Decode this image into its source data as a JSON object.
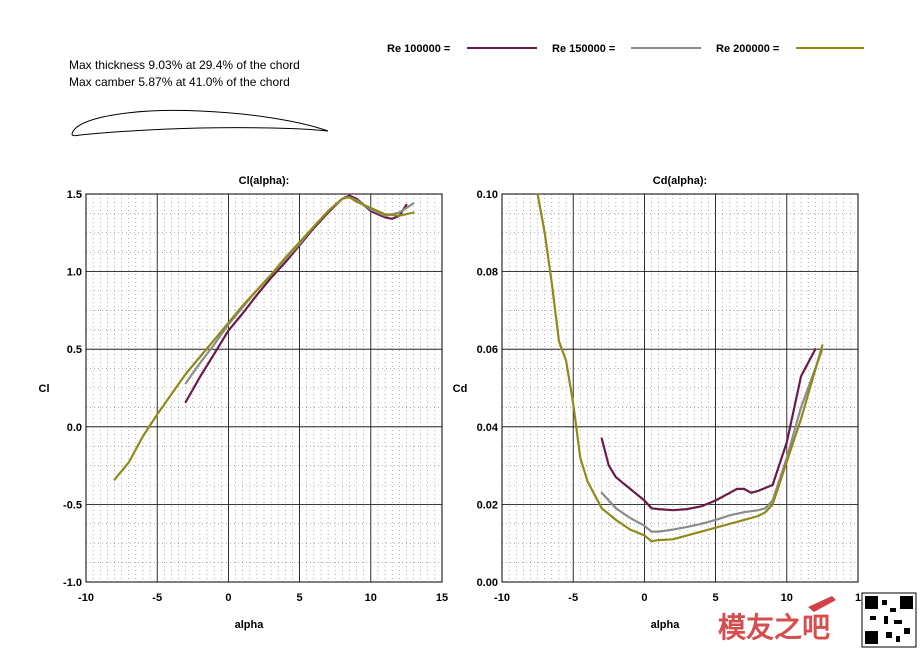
{
  "info": {
    "thickness": "Max thickness 9.03% at 29.4% of the chord",
    "camber": "Max camber 5.87% at 41.0% of the chord"
  },
  "legend": [
    {
      "label": "Re 100000 =",
      "color": "#6b1a4a"
    },
    {
      "label": "Re 150000 =",
      "color": "#8c8c8c"
    },
    {
      "label": "Re 200000 =",
      "color": "#8f8a1a"
    }
  ],
  "chart_data": [
    {
      "type": "line",
      "title": "Cl(alpha):",
      "xlabel": "alpha",
      "ylabel": "Cl",
      "xlim": [
        -10,
        15
      ],
      "ylim": [
        -1.0,
        1.5
      ],
      "xticks": [
        "-10",
        "-5",
        "0",
        "5",
        "10",
        "15"
      ],
      "yticks": [
        "-1.0",
        "-0.5",
        "0.0",
        "0.5",
        "1.0",
        "1.5"
      ],
      "grid": true,
      "series": [
        {
          "name": "Re 100000",
          "color": "#6b1a4a",
          "x": [
            -3,
            -2,
            -1,
            0,
            1,
            2,
            3,
            4,
            5,
            6,
            7,
            8,
            8.5,
            9,
            10,
            11,
            11.5,
            12,
            12.5
          ],
          "y": [
            0.16,
            0.32,
            0.47,
            0.62,
            0.73,
            0.85,
            0.96,
            1.06,
            1.17,
            1.28,
            1.38,
            1.47,
            1.49,
            1.47,
            1.39,
            1.35,
            1.34,
            1.36,
            1.43
          ]
        },
        {
          "name": "Re 150000",
          "color": "#8c8c8c",
          "x": [
            -3,
            -2,
            -1,
            0,
            1,
            2,
            3,
            4,
            5,
            6,
            7,
            8,
            8.5,
            9,
            10,
            11,
            12,
            13
          ],
          "y": [
            0.28,
            0.41,
            0.53,
            0.66,
            0.77,
            0.88,
            0.98,
            1.08,
            1.18,
            1.29,
            1.39,
            1.47,
            1.48,
            1.46,
            1.4,
            1.36,
            1.38,
            1.44
          ]
        },
        {
          "name": "Re 200000",
          "color": "#8f8a1a",
          "x": [
            -8,
            -7,
            -6,
            -5,
            -4,
            -3,
            -2,
            -1,
            0,
            1,
            2,
            3,
            4,
            5,
            6,
            7,
            8,
            8.5,
            9,
            10,
            11,
            12,
            13
          ],
          "y": [
            -0.34,
            -0.23,
            -0.06,
            0.08,
            0.21,
            0.34,
            0.45,
            0.56,
            0.67,
            0.78,
            0.88,
            0.98,
            1.09,
            1.19,
            1.29,
            1.39,
            1.47,
            1.48,
            1.45,
            1.41,
            1.37,
            1.36,
            1.38
          ]
        }
      ]
    },
    {
      "type": "line",
      "title": "Cd(alpha):",
      "xlabel": "alpha",
      "ylabel": "Cd",
      "xlim": [
        -10,
        15
      ],
      "ylim": [
        0.0,
        0.1
      ],
      "xticks": [
        "-10",
        "-5",
        "0",
        "5",
        "10",
        "1"
      ],
      "yticks": [
        "0.00",
        "0.02",
        "0.04",
        "0.06",
        "0.08",
        "0.10"
      ],
      "grid": true,
      "series": [
        {
          "name": "Re 100000",
          "color": "#6b1a4a",
          "x": [
            -3,
            -2.5,
            -2,
            -1,
            0,
            0.5,
            1,
            2,
            3,
            4,
            5,
            6,
            6.5,
            7,
            7.5,
            8,
            9,
            10,
            11,
            12
          ],
          "y": [
            0.037,
            0.03,
            0.027,
            0.024,
            0.021,
            0.019,
            0.0188,
            0.0185,
            0.0188,
            0.0195,
            0.021,
            0.023,
            0.024,
            0.024,
            0.023,
            0.0235,
            0.025,
            0.036,
            0.053,
            0.06
          ]
        },
        {
          "name": "Re 150000",
          "color": "#8c8c8c",
          "x": [
            -3,
            -2,
            -1,
            0,
            0.5,
            1,
            2,
            3,
            4,
            5,
            6,
            7,
            8,
            8.5,
            9,
            10,
            11,
            12.5
          ],
          "y": [
            0.023,
            0.019,
            0.0165,
            0.0145,
            0.013,
            0.013,
            0.0135,
            0.0142,
            0.015,
            0.016,
            0.0172,
            0.018,
            0.0185,
            0.019,
            0.021,
            0.032,
            0.045,
            0.06
          ]
        },
        {
          "name": "Re 200000",
          "color": "#8f8a1a",
          "x": [
            -7.5,
            -7,
            -6.5,
            -6,
            -5.5,
            -5,
            -4.5,
            -4,
            -3,
            -2,
            -1,
            0,
            0.5,
            1,
            2,
            3,
            4,
            5,
            6,
            7,
            8,
            8.5,
            9,
            10,
            11,
            12.5
          ],
          "y": [
            0.1,
            0.09,
            0.077,
            0.062,
            0.057,
            0.046,
            0.032,
            0.026,
            0.019,
            0.016,
            0.0135,
            0.012,
            0.0105,
            0.0108,
            0.011,
            0.012,
            0.013,
            0.014,
            0.015,
            0.016,
            0.017,
            0.018,
            0.02,
            0.031,
            0.042,
            0.061
          ]
        }
      ]
    }
  ]
}
